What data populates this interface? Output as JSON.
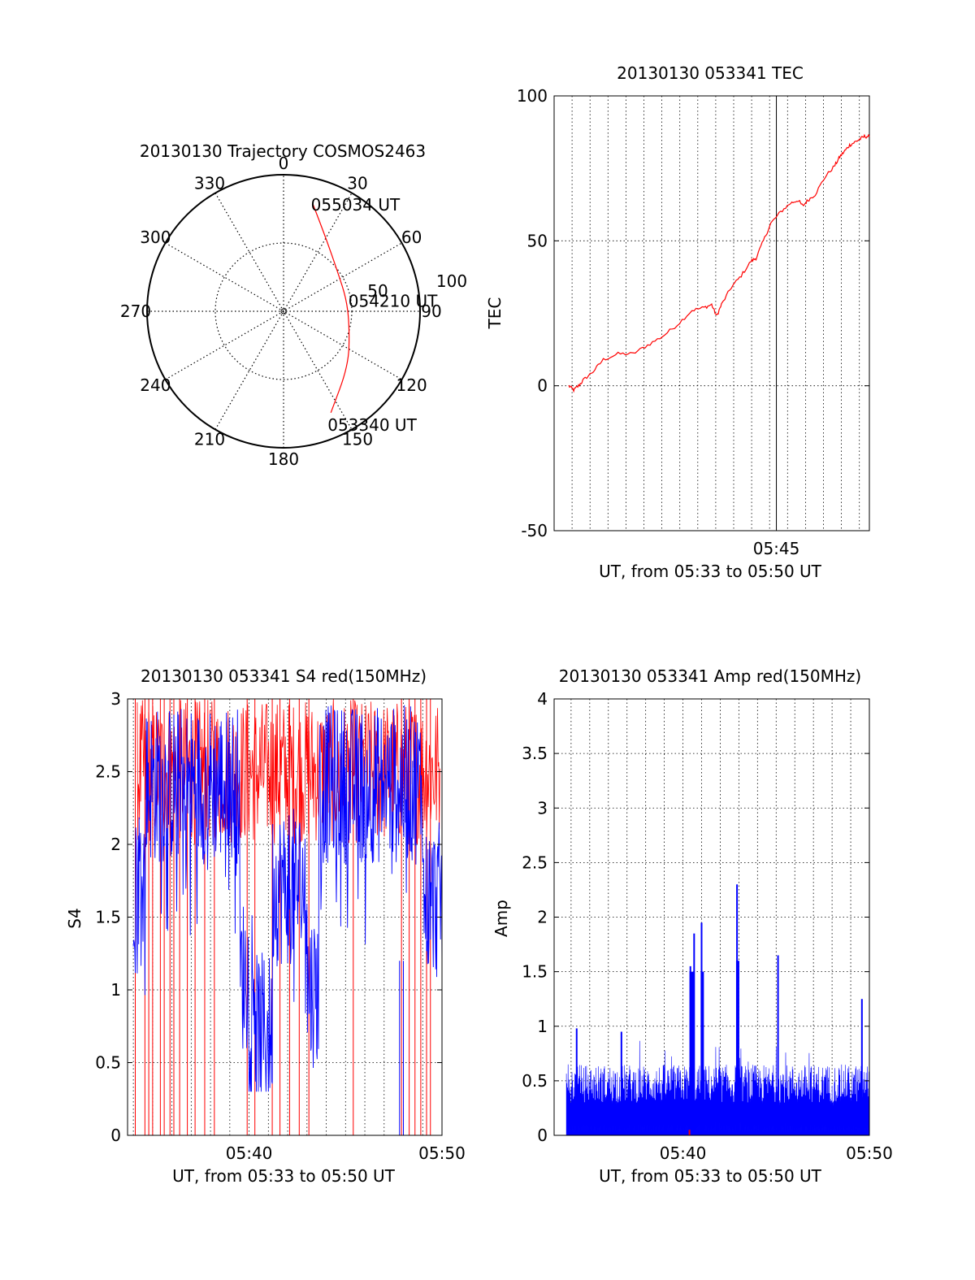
{
  "colors": {
    "red": "#ff0000",
    "blue": "#0000ff",
    "axis": "#000000"
  },
  "chart_data": [
    {
      "id": "polar",
      "type": "polar",
      "title": "20130130 Trajectory COSMOS2463",
      "angle_labels": [
        "0",
        "30",
        "60",
        "90",
        "120",
        "150",
        "180",
        "210",
        "240",
        "270",
        "300",
        "330"
      ],
      "radius_labels": [
        "50",
        "100"
      ],
      "radius_max": 100,
      "trajectory": {
        "color": "red",
        "points": [
          {
            "azimuth": 15,
            "zenith": 82
          },
          {
            "azimuth": 30,
            "zenith": 62
          },
          {
            "azimuth": 54,
            "zenith": 49
          },
          {
            "azimuth": 80,
            "zenith": 47
          },
          {
            "azimuth": 105,
            "zenith": 50
          },
          {
            "azimuth": 130,
            "zenith": 62
          },
          {
            "azimuth": 155,
            "zenith": 82
          }
        ]
      },
      "annotations": [
        {
          "text": "055034 UT",
          "azimuth": 15,
          "zenith": 82
        },
        {
          "text": "054210 UT",
          "azimuth": 80,
          "zenith": 47
        },
        {
          "text": "053340 UT",
          "azimuth": 155,
          "zenith": 82
        }
      ]
    },
    {
      "id": "tec",
      "type": "line",
      "title": "20130130 053341 TEC",
      "xlabel": "UT, from 05:33 to 05:50 UT",
      "ylabel": "TEC",
      "ylim": [
        -50,
        100
      ],
      "yticks": [
        "100",
        "50",
        "0",
        "-50"
      ],
      "xlim_minutes": [
        5,
        112
      ],
      "xticks": [
        {
          "label": "05:45",
          "x": 75
        }
      ],
      "series": [
        {
          "color": "red",
          "points": [
            [
              0,
              0
            ],
            [
              2,
              -1.5
            ],
            [
              4,
              0
            ],
            [
              6,
              2
            ],
            [
              10,
              5
            ],
            [
              14,
              9
            ],
            [
              20,
              11
            ],
            [
              26,
              11
            ],
            [
              32,
              14
            ],
            [
              38,
              17
            ],
            [
              44,
              21
            ],
            [
              50,
              26
            ],
            [
              55,
              27
            ],
            [
              58,
              28
            ],
            [
              60,
              24
            ],
            [
              62,
              28
            ],
            [
              66,
              34
            ],
            [
              70,
              38
            ],
            [
              74,
              43
            ],
            [
              76,
              44
            ],
            [
              79,
              50
            ],
            [
              82,
              56
            ],
            [
              86,
              60
            ],
            [
              90,
              63
            ],
            [
              93,
              64
            ],
            [
              95,
              62
            ],
            [
              97,
              64
            ],
            [
              100,
              66
            ],
            [
              104,
              72
            ],
            [
              108,
              76
            ],
            [
              110,
              79
            ],
            [
              112,
              81
            ],
            [
              114,
              83
            ],
            [
              116,
              84
            ],
            [
              118,
              85
            ],
            [
              120,
              86
            ],
            [
              122,
              86
            ]
          ]
        }
      ],
      "xdomain": [
        0,
        122
      ]
    },
    {
      "id": "s4",
      "type": "line",
      "title": "20130130 053341 S4 red(150MHz)",
      "xlabel": "UT, from 05:33 to 05:50 UT",
      "ylabel": "S4",
      "ylim": [
        0,
        3
      ],
      "yticks": [
        "3",
        "2.5",
        "2",
        "1.5",
        "1",
        "0.5",
        "0"
      ],
      "xlim_minutes": [
        33.7,
        50
      ],
      "xticks": [
        {
          "label": "05:40",
          "x": 40
        },
        {
          "label": "05:50",
          "x": 50
        }
      ],
      "series": [
        {
          "name": "",
          "color": "red"
        },
        {
          "name": "",
          "color": "blue"
        }
      ]
    },
    {
      "id": "amp",
      "type": "line",
      "title": "20130130 053341 Amp red(150MHz)",
      "xlabel": "UT, from 05:33 to 05:50 UT",
      "ylabel": "Amp",
      "ylim": [
        0,
        4
      ],
      "yticks": [
        "4",
        "3.5",
        "3",
        "2.5",
        "2",
        "1.5",
        "1",
        "0.5",
        "0"
      ],
      "xlim_minutes": [
        33.7,
        50
      ],
      "xticks": [
        {
          "label": "05:40",
          "x": 40
        },
        {
          "label": "05:50",
          "x": 50
        }
      ],
      "series": [
        {
          "name": "",
          "color": "blue"
        },
        {
          "name": "",
          "color": "red"
        }
      ],
      "peaks": [
        {
          "x": 40.4,
          "y": 1.55
        },
        {
          "x": 40.6,
          "y": 1.85
        },
        {
          "x": 41.0,
          "y": 1.95
        },
        {
          "x": 42.9,
          "y": 2.3
        },
        {
          "x": 45.1,
          "y": 1.65
        },
        {
          "x": 36.7,
          "y": 0.95
        },
        {
          "x": 34.3,
          "y": 0.98
        },
        {
          "x": 49.6,
          "y": 1.25
        }
      ]
    }
  ]
}
